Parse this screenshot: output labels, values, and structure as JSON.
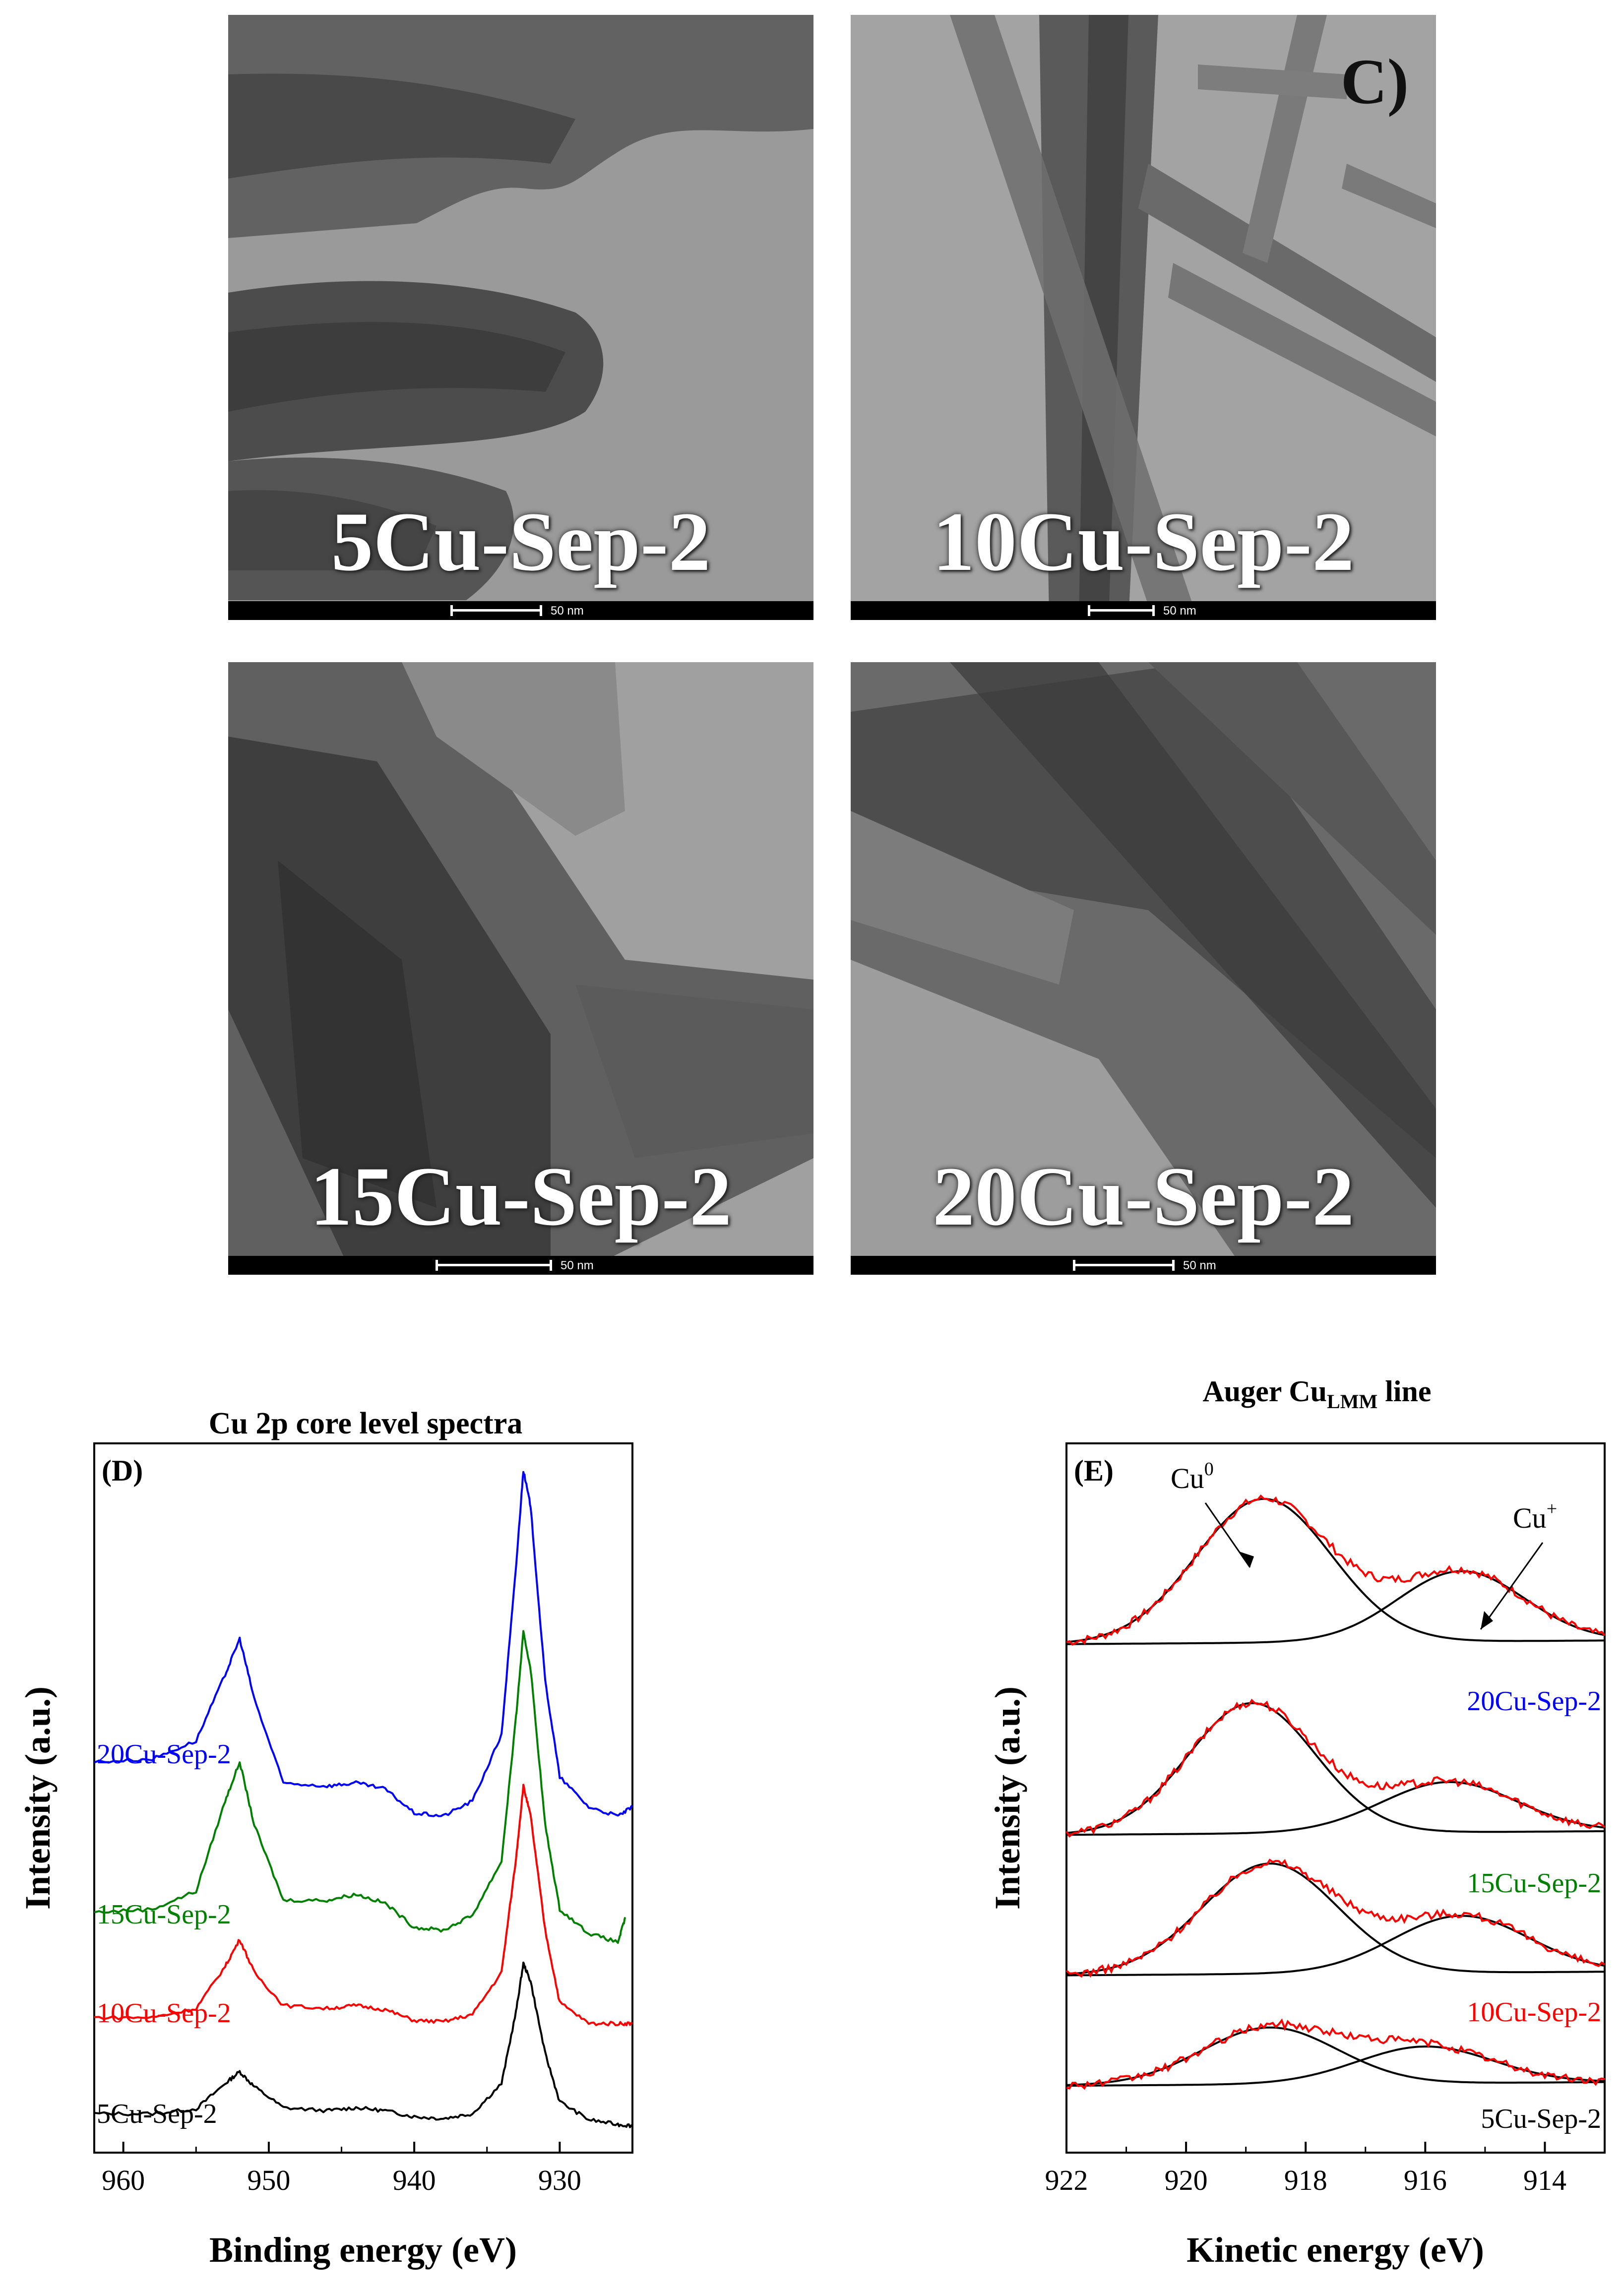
{
  "tem": {
    "panel_letter": "C)",
    "images": [
      {
        "label": "5Cu-Sep-2",
        "scale": "50 nm"
      },
      {
        "label": "10Cu-Sep-2",
        "scale": "50 nm"
      },
      {
        "label": "15Cu-Sep-2",
        "scale": "50 nm"
      },
      {
        "label": "20Cu-Sep-2",
        "scale": "50 nm"
      }
    ]
  },
  "colors": {
    "5Cu-Sep-2": "#000000",
    "10Cu-Sep-2": "#ff0000",
    "15Cu-Sep-2": "#008000",
    "20Cu-Sep-2": "#0000ff",
    "fit": "#000000",
    "measured": "#ff0000"
  },
  "chart_data": [
    {
      "type": "line",
      "panel": "(D)",
      "title": "Cu 2p core level spectra",
      "xlabel": "Binding energy (eV)",
      "ylabel": "Intensity (a.u.)",
      "xlim": [
        962,
        925
      ],
      "xticks": [
        960,
        950,
        940,
        930
      ],
      "y_units": "arbitrary (stacked)",
      "series": [
        {
          "name": "5Cu-Sep-2",
          "color_key": "5Cu-Sep-2",
          "offset": 0,
          "x": [
            962,
            958,
            955,
            953,
            952,
            951,
            949,
            946,
            944,
            942,
            940,
            938,
            936,
            934,
            933,
            932.5,
            932,
            931,
            930,
            928,
            926,
            925
          ],
          "y": [
            0.4,
            0.4,
            0.48,
            0.9,
            1.1,
            0.85,
            0.5,
            0.45,
            0.5,
            0.45,
            0.35,
            0.32,
            0.4,
            0.9,
            2.1,
            2.9,
            2.6,
            1.4,
            0.6,
            0.3,
            0.22,
            0.2
          ]
        },
        {
          "name": "10Cu-Sep-2",
          "color_key": "10Cu-Sep-2",
          "offset": 1.55,
          "x": [
            962,
            958,
            955,
            953,
            952,
            951,
            949,
            946,
            944,
            942,
            940,
            938,
            936,
            934,
            933,
            932.5,
            932,
            931,
            930,
            928,
            926,
            925
          ],
          "y": [
            0.45,
            0.45,
            0.6,
            1.3,
            1.75,
            1.2,
            0.65,
            0.6,
            0.65,
            0.58,
            0.4,
            0.38,
            0.5,
            1.2,
            3.1,
            4.3,
            3.8,
            1.9,
            0.7,
            0.35,
            0.35,
            0.35
          ]
        },
        {
          "name": "15Cu-Sep-2",
          "color_key": "15Cu-Sep-2",
          "offset": 3.2,
          "x": [
            962,
            958,
            955,
            953,
            952,
            951,
            949,
            946,
            944,
            942,
            940,
            938,
            936,
            934,
            933,
            932.5,
            932,
            931,
            930,
            928,
            926,
            925.5
          ],
          "y": [
            0.55,
            0.6,
            0.9,
            2.4,
            3.05,
            2.0,
            0.75,
            0.75,
            0.85,
            0.7,
            0.3,
            0.25,
            0.5,
            1.4,
            3.8,
            5.2,
            4.6,
            2.0,
            0.6,
            0.2,
            0.05,
            0.45
          ]
        },
        {
          "name": "20Cu-Sep-2",
          "color_key": "20Cu-Sep-2",
          "offset": 5.3,
          "x": [
            962,
            958,
            955,
            953,
            952,
            951,
            949,
            946,
            944,
            942,
            940,
            938,
            936,
            934,
            933,
            932.5,
            932,
            931,
            930,
            928,
            926,
            925
          ],
          "y": [
            0.95,
            1.0,
            1.3,
            2.4,
            3.0,
            2.0,
            0.6,
            0.55,
            0.6,
            0.5,
            0.1,
            0.05,
            0.3,
            1.4,
            4.2,
            5.8,
            5.2,
            2.3,
            0.7,
            0.2,
            0.05,
            0.2
          ]
        }
      ],
      "legend_labels": [
        "20Cu-Sep-2",
        "15Cu-Sep-2",
        "10Cu-Sep-2",
        "5Cu-Sep-2"
      ]
    },
    {
      "type": "line",
      "panel": "(E)",
      "title_main": "Auger Cu",
      "title_sub": "LMM",
      "title_rest": " line",
      "xlabel": "Kinetic energy (eV)",
      "ylabel": "Intensity (a.u.)",
      "xlim": [
        922,
        913
      ],
      "xticks": [
        922,
        920,
        918,
        916,
        914
      ],
      "annotations": [
        {
          "text": "Cu",
          "sup": "0",
          "at_x": 918.9
        },
        {
          "text": "Cu",
          "sup": "+",
          "at_x": 915.3
        }
      ],
      "series": [
        {
          "name": "20Cu-Sep-2",
          "baseline": 0.0,
          "cu0_amp": 2.15,
          "cu0_center": 918.7,
          "cu0_width": 1.6,
          "cup_amp": 1.05,
          "cup_center": 915.4,
          "cup_width": 1.5
        },
        {
          "name": "15Cu-Sep-2",
          "baseline": -2.85,
          "cu0_amp": 1.95,
          "cu0_center": 918.9,
          "cu0_width": 1.5,
          "cup_amp": 0.75,
          "cup_center": 915.6,
          "cup_width": 1.6
        },
        {
          "name": "10Cu-Sep-2",
          "baseline": -4.95,
          "cu0_amp": 1.65,
          "cu0_center": 918.6,
          "cu0_width": 1.6,
          "cup_amp": 0.85,
          "cup_center": 915.4,
          "cup_width": 1.6
        },
        {
          "name": "5Cu-Sep-2",
          "baseline": -6.6,
          "cu0_amp": 0.85,
          "cu0_center": 918.6,
          "cu0_width": 1.6,
          "cup_amp": 0.55,
          "cup_center": 916.0,
          "cup_width": 1.6
        }
      ],
      "legend_labels": [
        "20Cu-Sep-2",
        "15Cu-Sep-2",
        "10Cu-Sep-2",
        "5Cu-Sep-2"
      ]
    }
  ]
}
